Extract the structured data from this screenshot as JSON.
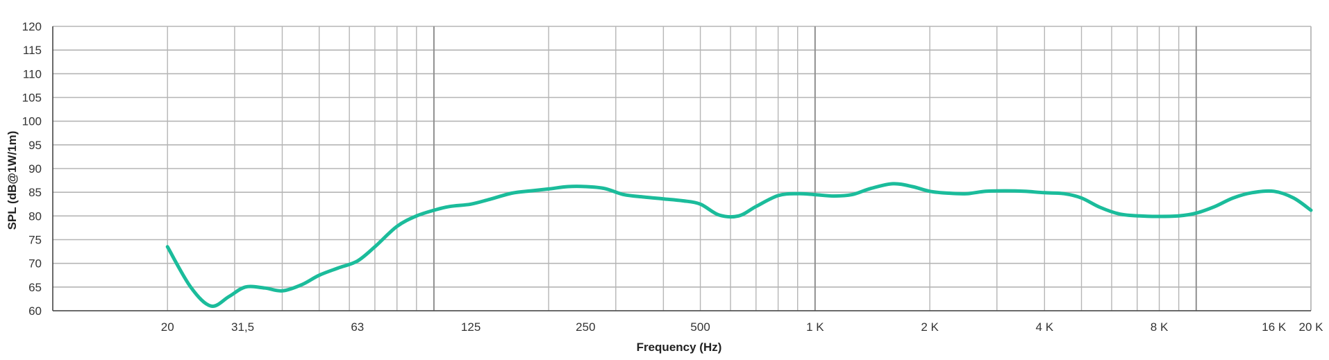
{
  "chart_data": {
    "type": "line",
    "title": "",
    "xlabel": "Frequency (Hz)",
    "ylabel": "SPL (dB@1W/1m)",
    "x_scale": "log",
    "xlim": [
      10,
      20000
    ],
    "ylim": [
      60,
      120
    ],
    "grid": true,
    "legend": "none",
    "x_tick_labels": [
      {
        "value": 20,
        "label": "20"
      },
      {
        "value": 31.5,
        "label": "31,5"
      },
      {
        "value": 63,
        "label": "63"
      },
      {
        "value": 125,
        "label": "125"
      },
      {
        "value": 250,
        "label": "250"
      },
      {
        "value": 500,
        "label": "500"
      },
      {
        "value": 1000,
        "label": "1 K"
      },
      {
        "value": 2000,
        "label": "2 K"
      },
      {
        "value": 4000,
        "label": "4 K"
      },
      {
        "value": 8000,
        "label": "8 K"
      },
      {
        "value": 16000,
        "label": "16 K"
      },
      {
        "value": 20000,
        "label": "20 K"
      }
    ],
    "y_ticks": [
      60,
      65,
      70,
      75,
      80,
      85,
      90,
      95,
      100,
      105,
      110,
      115,
      120
    ],
    "colors": {
      "line": "#1bbc9b",
      "grid": "#b5b5b5",
      "grid_major": "#8f8f8f",
      "axis": "#444444"
    },
    "series": [
      {
        "x": [
          20,
          23,
          26,
          29,
          32,
          36,
          40,
          45,
          50,
          56,
          63,
          70,
          80,
          90,
          100,
          110,
          125,
          140,
          160,
          180,
          200,
          225,
          250,
          280,
          315,
          355,
          400,
          450,
          500,
          560,
          630,
          700,
          800,
          900,
          1000,
          1120,
          1250,
          1400,
          1600,
          1800,
          2000,
          2240,
          2500,
          2800,
          3150,
          3550,
          4000,
          4500,
          5000,
          5600,
          6300,
          7100,
          8000,
          9000,
          10000,
          11200,
          12500,
          14000,
          16000,
          18000,
          20000
        ],
        "y": [
          73.5,
          65.0,
          61.0,
          63.0,
          65.0,
          64.8,
          64.2,
          65.5,
          67.5,
          69.0,
          70.5,
          73.5,
          77.8,
          80.0,
          81.2,
          82.0,
          82.5,
          83.5,
          84.8,
          85.3,
          85.7,
          86.2,
          86.2,
          85.8,
          84.5,
          84.0,
          83.6,
          83.2,
          82.5,
          80.2,
          80.0,
          82.0,
          84.3,
          84.7,
          84.5,
          84.2,
          84.5,
          85.8,
          86.8,
          86.2,
          85.2,
          84.8,
          84.7,
          85.2,
          85.3,
          85.2,
          84.9,
          84.7,
          83.8,
          81.8,
          80.4,
          80.0,
          79.9,
          80.0,
          80.6,
          82.0,
          83.8,
          84.9,
          85.2,
          83.8,
          81.2
        ]
      }
    ]
  }
}
